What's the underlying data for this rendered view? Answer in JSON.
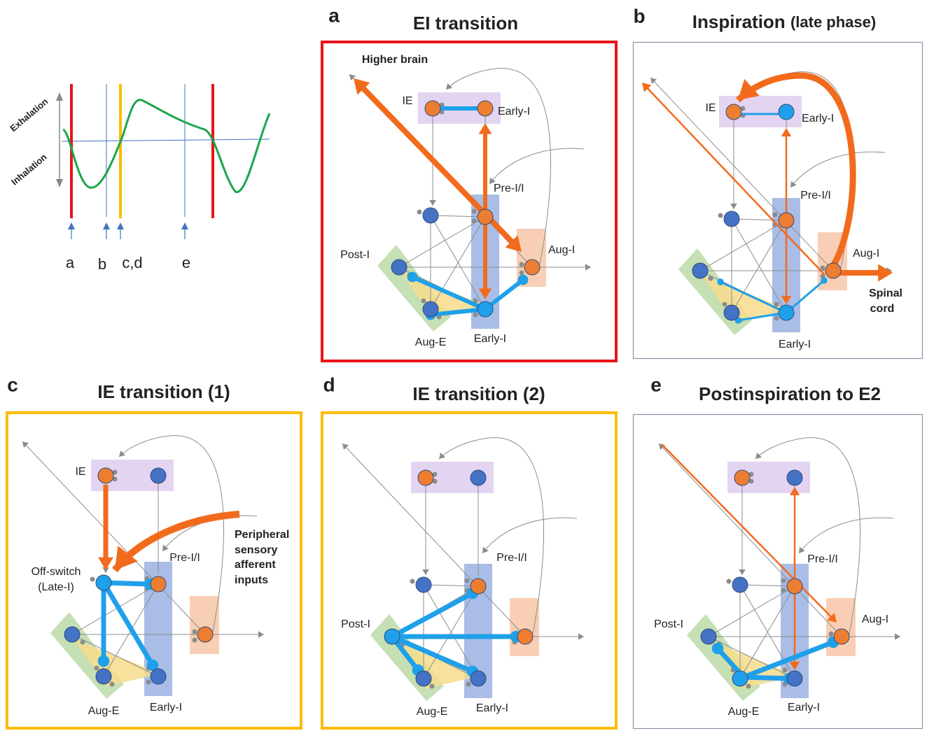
{
  "timeline": {
    "y_labels": [
      "Exhalation",
      "Inhalation"
    ],
    "markers": [
      "a",
      "b",
      "c,d",
      "e"
    ]
  },
  "panels": [
    {
      "letter": "a",
      "title": "EI transition",
      "labels": [
        "Higher brain",
        "IE",
        "Early-I",
        "Pre-I/I",
        "Post-I",
        "Aug-I",
        "Aug-E",
        "Early-I"
      ]
    },
    {
      "letter": "b",
      "title": "Inspiration",
      "title_note": "(late phase)",
      "labels": [
        "IE",
        "Early-I",
        "Pre-I/I",
        "Aug-I",
        "Spinal",
        "cord",
        "Early-I"
      ]
    },
    {
      "letter": "c",
      "title": "IE transition (1)",
      "labels": [
        "IE",
        "Pre-I/I",
        "Off-switch",
        "(Late-I)",
        "Peripheral",
        "sensory",
        "afferent",
        "inputs",
        "Aug-E",
        "Early-I"
      ]
    },
    {
      "letter": "d",
      "title": "IE transition (2)",
      "labels": [
        "Pre-I/I",
        "Post-I",
        "Aug-E",
        "Early-I"
      ]
    },
    {
      "letter": "e",
      "title": "Postinspiration to E2",
      "labels": [
        "Pre-I/I",
        "Post-I",
        "Aug-I",
        "Aug-E",
        "Early-I"
      ]
    }
  ]
}
